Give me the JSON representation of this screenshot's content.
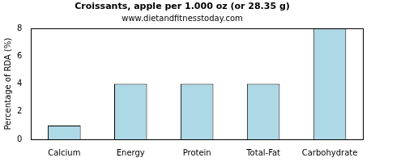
{
  "chart_data": {
    "type": "bar",
    "title": "Croissants, apple per 1.000 oz (or 28.35 g)",
    "subtitle": "www.dietandfitnesstoday.com",
    "y_label": "Percentage of RDA (%)",
    "categories": [
      "Calcium",
      "Energy",
      "Protein",
      "Total-Fat",
      "Carbohydrate"
    ],
    "values": [
      1,
      4,
      4,
      4,
      8
    ],
    "color": "#add8e6",
    "ylim": [
      0,
      8
    ],
    "yticks": [
      0,
      2,
      4,
      6,
      8
    ],
    "grid": false
  }
}
